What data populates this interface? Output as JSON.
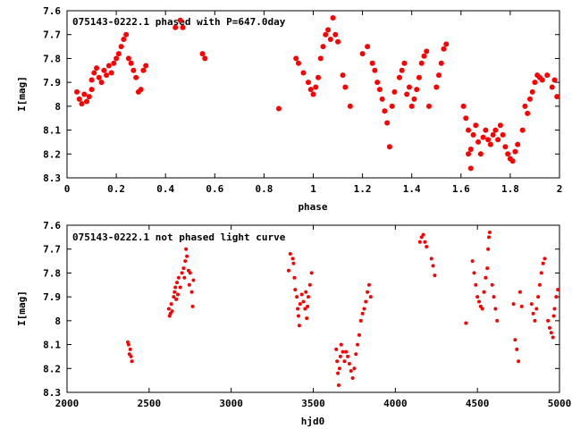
{
  "chart_data": [
    {
      "type": "scatter",
      "title": "075143-0222.1 phased with P=647.0day",
      "xlabel": "phase",
      "ylabel": "I[mag]",
      "xlim": [
        0,
        2
      ],
      "ylim": [
        8.3,
        7.6
      ],
      "y_inverted": true,
      "xticks": [
        "0",
        "0.2",
        "0.4",
        "0.6",
        "0.8",
        "1",
        "1.2",
        "1.4",
        "1.6",
        "1.8",
        "2"
      ],
      "yticks": [
        "7.6",
        "7.7",
        "7.8",
        "7.9",
        "8",
        "8.1",
        "8.2",
        "8.3"
      ],
      "grid": false,
      "marker_color": "#ff0000",
      "points": [
        [
          0.04,
          7.94
        ],
        [
          0.05,
          7.97
        ],
        [
          0.06,
          7.99
        ],
        [
          0.07,
          7.95
        ],
        [
          0.08,
          7.98
        ],
        [
          0.09,
          7.96
        ],
        [
          0.1,
          7.93
        ],
        [
          0.1,
          7.89
        ],
        [
          0.11,
          7.86
        ],
        [
          0.12,
          7.84
        ],
        [
          0.13,
          7.88
        ],
        [
          0.14,
          7.9
        ],
        [
          0.15,
          7.85
        ],
        [
          0.16,
          7.87
        ],
        [
          0.17,
          7.83
        ],
        [
          0.18,
          7.86
        ],
        [
          0.19,
          7.82
        ],
        [
          0.2,
          7.8
        ],
        [
          0.21,
          7.78
        ],
        [
          0.22,
          7.75
        ],
        [
          0.23,
          7.72
        ],
        [
          0.24,
          7.7
        ],
        [
          0.25,
          7.8
        ],
        [
          0.26,
          7.82
        ],
        [
          0.27,
          7.85
        ],
        [
          0.28,
          7.88
        ],
        [
          0.29,
          7.94
        ],
        [
          0.3,
          7.93
        ],
        [
          0.31,
          7.85
        ],
        [
          0.32,
          7.83
        ],
        [
          0.44,
          7.67
        ],
        [
          0.46,
          7.64
        ],
        [
          0.47,
          7.67
        ],
        [
          0.55,
          7.78
        ],
        [
          0.56,
          7.8
        ],
        [
          0.86,
          8.01
        ],
        [
          0.93,
          7.8
        ],
        [
          0.94,
          7.82
        ],
        [
          0.96,
          7.86
        ],
        [
          0.98,
          7.9
        ],
        [
          0.99,
          7.93
        ],
        [
          1.0,
          7.95
        ],
        [
          1.01,
          7.92
        ],
        [
          1.02,
          7.88
        ],
        [
          1.03,
          7.8
        ],
        [
          1.04,
          7.75
        ],
        [
          1.05,
          7.7
        ],
        [
          1.06,
          7.68
        ],
        [
          1.07,
          7.72
        ],
        [
          1.08,
          7.63
        ],
        [
          1.09,
          7.7
        ],
        [
          1.1,
          7.73
        ],
        [
          1.12,
          7.87
        ],
        [
          1.13,
          7.92
        ],
        [
          1.15,
          8.0
        ],
        [
          1.2,
          7.78
        ],
        [
          1.22,
          7.75
        ],
        [
          1.24,
          7.82
        ],
        [
          1.25,
          7.85
        ],
        [
          1.26,
          7.9
        ],
        [
          1.27,
          7.93
        ],
        [
          1.28,
          7.97
        ],
        [
          1.29,
          8.02
        ],
        [
          1.3,
          8.07
        ],
        [
          1.31,
          8.17
        ],
        [
          1.32,
          8.0
        ],
        [
          1.33,
          7.94
        ],
        [
          1.35,
          7.88
        ],
        [
          1.36,
          7.85
        ],
        [
          1.37,
          7.82
        ],
        [
          1.38,
          7.95
        ],
        [
          1.39,
          7.92
        ],
        [
          1.4,
          8.0
        ],
        [
          1.41,
          7.97
        ],
        [
          1.42,
          7.93
        ],
        [
          1.43,
          7.88
        ],
        [
          1.44,
          7.82
        ],
        [
          1.45,
          7.79
        ],
        [
          1.46,
          7.77
        ],
        [
          1.47,
          8.0
        ],
        [
          1.5,
          7.92
        ],
        [
          1.51,
          7.87
        ],
        [
          1.52,
          7.82
        ],
        [
          1.53,
          7.76
        ],
        [
          1.54,
          7.74
        ],
        [
          1.61,
          8.0
        ],
        [
          1.62,
          8.05
        ],
        [
          1.63,
          8.1
        ],
        [
          1.63,
          8.2
        ],
        [
          1.64,
          8.26
        ],
        [
          1.64,
          8.18
        ],
        [
          1.65,
          8.12
        ],
        [
          1.66,
          8.08
        ],
        [
          1.67,
          8.15
        ],
        [
          1.68,
          8.2
        ],
        [
          1.69,
          8.13
        ],
        [
          1.7,
          8.1
        ],
        [
          1.71,
          8.14
        ],
        [
          1.72,
          8.16
        ],
        [
          1.73,
          8.12
        ],
        [
          1.74,
          8.1
        ],
        [
          1.75,
          8.14
        ],
        [
          1.76,
          8.08
        ],
        [
          1.77,
          8.12
        ],
        [
          1.78,
          8.17
        ],
        [
          1.79,
          8.2
        ],
        [
          1.8,
          8.22
        ],
        [
          1.81,
          8.23
        ],
        [
          1.82,
          8.19
        ],
        [
          1.83,
          8.16
        ],
        [
          1.85,
          8.1
        ],
        [
          1.86,
          8.0
        ],
        [
          1.87,
          8.03
        ],
        [
          1.88,
          7.97
        ],
        [
          1.89,
          7.94
        ],
        [
          1.9,
          7.9
        ],
        [
          1.91,
          7.87
        ],
        [
          1.92,
          7.88
        ],
        [
          1.93,
          7.89
        ],
        [
          1.95,
          7.87
        ],
        [
          1.97,
          7.92
        ],
        [
          1.98,
          7.89
        ],
        [
          1.99,
          7.96
        ]
      ]
    },
    {
      "type": "scatter",
      "title": "075143-0222.1 not phased light curve",
      "xlabel": "hjd0",
      "ylabel": "I[mag]",
      "xlim": [
        2000,
        5000
      ],
      "ylim": [
        8.3,
        7.6
      ],
      "y_inverted": true,
      "xticks": [
        "2000",
        "2500",
        "3000",
        "3500",
        "4000",
        "4500",
        "5000"
      ],
      "yticks": [
        "7.6",
        "7.7",
        "7.8",
        "7.9",
        "8",
        "8.1",
        "8.2",
        "8.3"
      ],
      "grid": false,
      "marker_color": "#ff0000",
      "points": [
        [
          2370,
          8.09
        ],
        [
          2375,
          8.1
        ],
        [
          2380,
          8.14
        ],
        [
          2385,
          8.12
        ],
        [
          2390,
          8.15
        ],
        [
          2395,
          8.17
        ],
        [
          2620,
          7.95
        ],
        [
          2625,
          7.98
        ],
        [
          2630,
          7.97
        ],
        [
          2635,
          7.93
        ],
        [
          2640,
          7.96
        ],
        [
          2650,
          7.9
        ],
        [
          2655,
          7.88
        ],
        [
          2660,
          7.86
        ],
        [
          2665,
          7.91
        ],
        [
          2670,
          7.84
        ],
        [
          2675,
          7.89
        ],
        [
          2680,
          7.82
        ],
        [
          2690,
          7.86
        ],
        [
          2700,
          7.8
        ],
        [
          2710,
          7.78
        ],
        [
          2715,
          7.82
        ],
        [
          2720,
          7.75
        ],
        [
          2725,
          7.7
        ],
        [
          2730,
          7.73
        ],
        [
          2740,
          7.79
        ],
        [
          2745,
          7.85
        ],
        [
          2750,
          7.8
        ],
        [
          2760,
          7.88
        ],
        [
          2765,
          7.94
        ],
        [
          2770,
          7.83
        ],
        [
          3350,
          7.79
        ],
        [
          3360,
          7.72
        ],
        [
          3375,
          7.74
        ],
        [
          3380,
          7.76
        ],
        [
          3385,
          7.82
        ],
        [
          3390,
          7.87
        ],
        [
          3400,
          7.9
        ],
        [
          3405,
          7.95
        ],
        [
          3410,
          7.98
        ],
        [
          3415,
          8.02
        ],
        [
          3420,
          7.93
        ],
        [
          3430,
          7.89
        ],
        [
          3440,
          7.92
        ],
        [
          3450,
          7.95
        ],
        [
          3455,
          7.88
        ],
        [
          3460,
          7.99
        ],
        [
          3465,
          7.94
        ],
        [
          3470,
          7.9
        ],
        [
          3480,
          7.85
        ],
        [
          3490,
          7.8
        ],
        [
          3640,
          8.12
        ],
        [
          3645,
          8.17
        ],
        [
          3650,
          8.22
        ],
        [
          3655,
          8.27
        ],
        [
          3660,
          8.2
        ],
        [
          3665,
          8.15
        ],
        [
          3670,
          8.1
        ],
        [
          3680,
          8.13
        ],
        [
          3690,
          8.17
        ],
        [
          3700,
          8.13
        ],
        [
          3710,
          8.15
        ],
        [
          3720,
          8.18
        ],
        [
          3730,
          8.21
        ],
        [
          3740,
          8.24
        ],
        [
          3750,
          8.2
        ],
        [
          3760,
          8.14
        ],
        [
          3770,
          8.1
        ],
        [
          3780,
          8.06
        ],
        [
          3790,
          8.0
        ],
        [
          3800,
          7.97
        ],
        [
          3810,
          7.95
        ],
        [
          3820,
          7.92
        ],
        [
          3830,
          7.88
        ],
        [
          3840,
          7.85
        ],
        [
          3850,
          7.9
        ],
        [
          4150,
          7.67
        ],
        [
          4160,
          7.65
        ],
        [
          4170,
          7.64
        ],
        [
          4180,
          7.67
        ],
        [
          4190,
          7.69
        ],
        [
          4220,
          7.74
        ],
        [
          4230,
          7.77
        ],
        [
          4240,
          7.81
        ],
        [
          4430,
          8.01
        ],
        [
          4470,
          7.75
        ],
        [
          4480,
          7.8
        ],
        [
          4490,
          7.85
        ],
        [
          4500,
          7.9
        ],
        [
          4510,
          7.92
        ],
        [
          4520,
          7.94
        ],
        [
          4530,
          7.95
        ],
        [
          4540,
          7.88
        ],
        [
          4550,
          7.82
        ],
        [
          4560,
          7.78
        ],
        [
          4565,
          7.7
        ],
        [
          4570,
          7.65
        ],
        [
          4575,
          7.63
        ],
        [
          4590,
          7.85
        ],
        [
          4600,
          7.9
        ],
        [
          4610,
          7.95
        ],
        [
          4620,
          8.0
        ],
        [
          4720,
          7.93
        ],
        [
          4730,
          8.08
        ],
        [
          4740,
          8.12
        ],
        [
          4750,
          8.17
        ],
        [
          4760,
          7.88
        ],
        [
          4770,
          7.94
        ],
        [
          4830,
          7.93
        ],
        [
          4840,
          7.97
        ],
        [
          4850,
          8.0
        ],
        [
          4860,
          7.95
        ],
        [
          4870,
          7.9
        ],
        [
          4880,
          7.85
        ],
        [
          4890,
          7.8
        ],
        [
          4900,
          7.76
        ],
        [
          4910,
          7.74
        ],
        [
          4930,
          8.0
        ],
        [
          4940,
          8.03
        ],
        [
          4950,
          8.05
        ],
        [
          4960,
          8.07
        ],
        [
          4965,
          7.98
        ],
        [
          4970,
          7.95
        ],
        [
          4980,
          7.9
        ],
        [
          4990,
          7.87
        ]
      ]
    }
  ]
}
